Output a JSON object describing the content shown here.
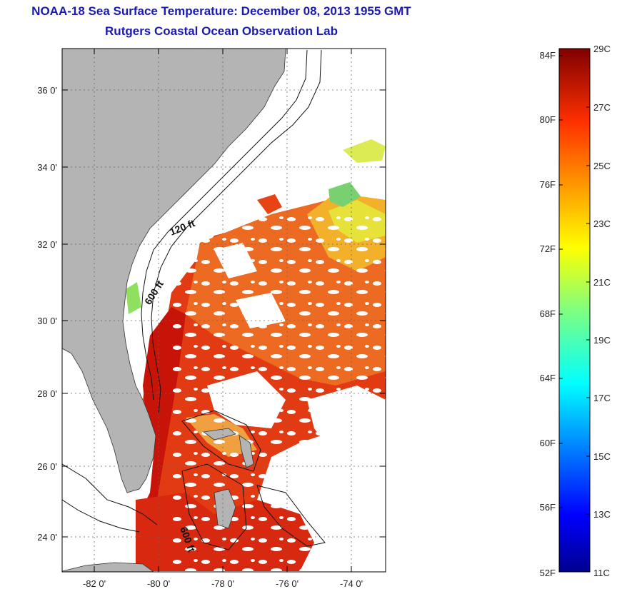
{
  "title": "NOAA-18 Sea Surface Temperature:  December 08, 2013 1955 GMT",
  "subtitle": "Rutgers Coastal Ocean Observation Lab",
  "map": {
    "lat_ticks": [
      "36 0'",
      "34 0'",
      "32 0'",
      "30 0'",
      "28 0'",
      "26 0'",
      "24 0'"
    ],
    "lon_ticks": [
      "-82 0'",
      "-80 0'",
      "-78 0'",
      "-76 0'",
      "-74 0'"
    ],
    "isobath_labels": [
      "120 ft",
      "600 ft",
      "600 ft"
    ],
    "colors": {
      "land": "#b4b4b4",
      "no_data": "#ffffff",
      "warm": "#e23010",
      "hot": "#c81408"
    }
  },
  "colorbar": {
    "fahrenheit_labels": [
      "84F",
      "80F",
      "76F",
      "72F",
      "68F",
      "64F",
      "60F",
      "56F",
      "52F"
    ],
    "celsius_labels": [
      "29C",
      "27C",
      "25C",
      "23C",
      "21C",
      "19C",
      "17C",
      "15C",
      "13C",
      "11C"
    ],
    "min_c": 11,
    "max_c": 29
  }
}
